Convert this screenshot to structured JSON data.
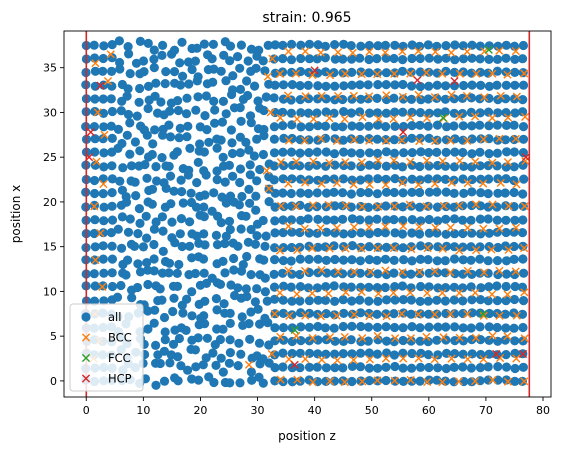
{
  "chart_data": {
    "type": "scatter",
    "title": "strain: 0.965",
    "xlabel": "position z",
    "ylabel": "position x",
    "xlim": [
      -3.9,
      81.4
    ],
    "ylim": [
      -1.8,
      39.1
    ],
    "xticks": [
      0,
      10,
      20,
      30,
      40,
      50,
      60,
      70,
      80
    ],
    "yticks": [
      0,
      5,
      10,
      15,
      20,
      25,
      30,
      35
    ],
    "grid": false,
    "legend_position": "lower-left",
    "vlines": [
      {
        "x": 0.0,
        "color": "#d62728"
      },
      {
        "x": 77.6,
        "color": "#d62728"
      }
    ],
    "series": [
      {
        "name": "all",
        "marker": "circle",
        "color": "#1f77b4",
        "region": {
          "x_range": [
            0.0,
            77.6
          ],
          "y_range": [
            0.0,
            37.8
          ],
          "lattice_dx": 1.5,
          "lattice_dy": 1.5,
          "disordered_x_range": [
            5.0,
            33.0
          ]
        }
      },
      {
        "name": "BCC",
        "marker": "x",
        "color": "#ff7f0e",
        "region": {
          "x_range": [
            34.0,
            77.6
          ],
          "y_range": [
            0.0,
            37.8
          ],
          "lattice_dx": 2.85,
          "lattice_dy": 2.45
        },
        "extra_points": [
          [
            1.3,
            2.5
          ],
          [
            2.3,
            4.5
          ],
          [
            1.5,
            7.5
          ],
          [
            2.8,
            10.5
          ],
          [
            1.6,
            13.5
          ],
          [
            2.5,
            16.5
          ],
          [
            1.4,
            19.5
          ],
          [
            3.0,
            22.0
          ],
          [
            1.8,
            24.5
          ],
          [
            3.2,
            27.5
          ],
          [
            2.0,
            30.0
          ],
          [
            3.8,
            33.5
          ],
          [
            1.6,
            35.5
          ],
          [
            4.3,
            36.5
          ],
          [
            32.0,
            21.5
          ],
          [
            31.6,
            23.5
          ],
          [
            32.3,
            30.0
          ],
          [
            31.8,
            34.0
          ],
          [
            32.6,
            36.0
          ],
          [
            33.0,
            7.5
          ],
          [
            32.5,
            3.0
          ],
          [
            28.5,
            1.8
          ]
        ]
      },
      {
        "name": "FCC",
        "marker": "x",
        "color": "#2ca02c",
        "points": [
          [
            36.5,
            5.7
          ],
          [
            62.5,
            29.4
          ],
          [
            69.5,
            7.5
          ],
          [
            70.5,
            37.0
          ]
        ]
      },
      {
        "name": "HCP",
        "marker": "x",
        "color": "#d62728",
        "points": [
          [
            0.8,
            27.8
          ],
          [
            0.5,
            25.0
          ],
          [
            2.5,
            33.0
          ],
          [
            40.0,
            34.7
          ],
          [
            55.5,
            27.8
          ],
          [
            58.0,
            33.6
          ],
          [
            64.5,
            33.5
          ],
          [
            36.5,
            1.8
          ],
          [
            71.8,
            3.0
          ],
          [
            76.5,
            3.0
          ],
          [
            77.0,
            25.0
          ]
        ]
      }
    ]
  }
}
